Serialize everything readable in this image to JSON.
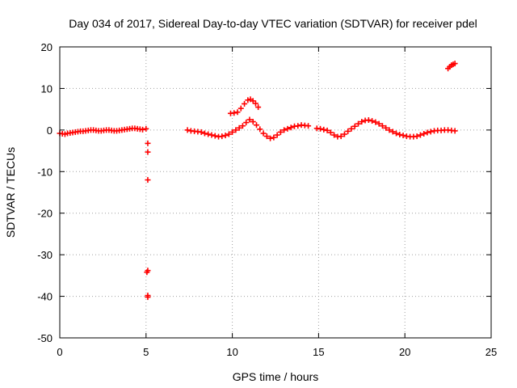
{
  "chart_data": {
    "type": "scatter",
    "title": "Day 034 of 2017, Sidereal Day-to-day VTEC variation (SDTVAR) for receiver pdel",
    "xlabel": "GPS time / hours",
    "ylabel": "SDTVAR / TECUs",
    "xlim": [
      0,
      25
    ],
    "ylim": [
      -50,
      20
    ],
    "xticks": [
      0,
      5,
      10,
      15,
      20,
      25
    ],
    "yticks": [
      -50,
      -40,
      -30,
      -20,
      -10,
      0,
      10,
      20
    ],
    "xtick_labels": [
      "0",
      "5",
      "10",
      "15",
      "20",
      "25"
    ],
    "ytick_labels": [
      "-50",
      "-40",
      "-30",
      "-20",
      "-10",
      "0",
      "10",
      "20"
    ],
    "grid": true,
    "marker": "+",
    "series": [
      {
        "name": "pdel SDTVAR",
        "color": "#ff0000",
        "x": [
          0.0,
          0.15,
          0.3,
          0.45,
          0.6,
          0.75,
          0.9,
          1.05,
          1.2,
          1.35,
          1.5,
          1.65,
          1.8,
          1.95,
          2.1,
          2.25,
          2.4,
          2.55,
          2.7,
          2.85,
          3.0,
          3.15,
          3.3,
          3.45,
          3.6,
          3.75,
          3.9,
          4.05,
          4.2,
          4.35,
          4.5,
          4.65,
          4.8,
          5.0,
          5.1,
          5.1,
          5.1,
          5.1,
          5.1,
          5.05,
          5.1,
          7.4,
          7.6,
          7.8,
          8.0,
          8.2,
          8.4,
          8.6,
          8.8,
          9.0,
          9.2,
          9.4,
          9.6,
          9.8,
          10.0,
          10.2,
          10.4,
          10.6,
          10.8,
          11.0,
          11.2,
          11.4,
          11.6,
          11.8,
          12.0,
          12.2,
          12.4,
          12.6,
          12.8,
          13.0,
          13.2,
          13.4,
          13.6,
          13.8,
          14.0,
          14.2,
          14.4,
          9.9,
          10.1,
          10.3,
          10.5,
          10.7,
          10.9,
          11.05,
          11.2,
          11.35,
          11.5,
          14.9,
          15.1,
          15.3,
          15.5,
          15.7,
          15.9,
          16.1,
          16.3,
          16.5,
          16.7,
          16.9,
          17.1,
          17.3,
          17.5,
          17.7,
          17.9,
          18.1,
          18.3,
          18.5,
          18.7,
          18.9,
          19.1,
          19.3,
          19.5,
          19.7,
          19.9,
          20.1,
          20.3,
          20.5,
          20.7,
          20.9,
          21.1,
          21.3,
          21.5,
          21.7,
          21.9,
          22.1,
          22.3,
          22.5,
          22.7,
          22.9,
          22.5,
          22.6,
          22.7,
          22.8,
          22.9
        ],
        "y": [
          -0.8,
          -0.9,
          -1.0,
          -0.8,
          -0.7,
          -0.6,
          -0.5,
          -0.4,
          -0.3,
          -0.3,
          -0.2,
          -0.1,
          0.0,
          0.0,
          -0.1,
          -0.2,
          -0.2,
          -0.1,
          0.0,
          0.0,
          -0.1,
          -0.2,
          -0.2,
          -0.1,
          0.0,
          0.1,
          0.2,
          0.3,
          0.4,
          0.4,
          0.3,
          0.2,
          0.1,
          0.3,
          -3.2,
          -5.3,
          -12.0,
          -33.8,
          -39.8,
          -34.2,
          -40.2,
          0.0,
          -0.2,
          -0.3,
          -0.4,
          -0.5,
          -0.8,
          -1.0,
          -1.2,
          -1.4,
          -1.6,
          -1.5,
          -1.3,
          -1.0,
          -0.5,
          0.0,
          0.5,
          1.0,
          1.8,
          2.5,
          2.0,
          1.2,
          0.2,
          -0.8,
          -1.5,
          -2.0,
          -1.8,
          -1.2,
          -0.5,
          0.0,
          0.3,
          0.6,
          0.9,
          1.0,
          1.2,
          1.1,
          1.0,
          4.0,
          4.1,
          4.3,
          5.2,
          6.3,
          7.2,
          7.4,
          7.0,
          6.4,
          5.5,
          0.4,
          0.3,
          0.1,
          -0.1,
          -0.6,
          -1.2,
          -1.6,
          -1.5,
          -1.0,
          -0.3,
          0.3,
          0.9,
          1.5,
          2.0,
          2.3,
          2.4,
          2.2,
          1.9,
          1.5,
          1.0,
          0.5,
          0.0,
          -0.4,
          -0.8,
          -1.1,
          -1.3,
          -1.5,
          -1.6,
          -1.6,
          -1.5,
          -1.2,
          -0.9,
          -0.6,
          -0.4,
          -0.2,
          -0.1,
          -0.1,
          0.0,
          0.0,
          -0.1,
          -0.2,
          14.8,
          15.2,
          15.6,
          15.8,
          16.0
        ]
      }
    ]
  }
}
